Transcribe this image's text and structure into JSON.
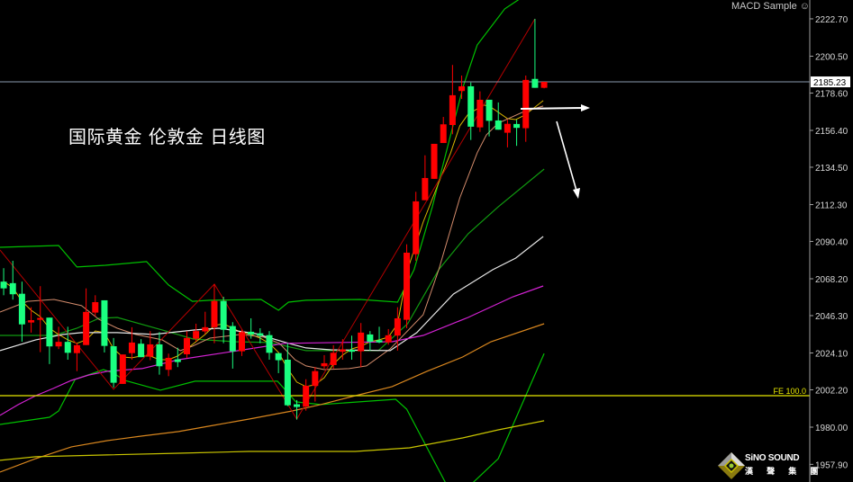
{
  "header": {
    "title": "国际黄金 伦敦金 日线图",
    "indicator_name": "MACD Sample ☺"
  },
  "logo": {
    "text": "SiNO SOUND",
    "text_cn": "漢 聲 集 團"
  },
  "colors": {
    "background": "#000000",
    "up_candle": "#ff0000",
    "down_candle": "#1aff80",
    "axis": "#a0a0a0",
    "current_price_line": "#8a9aae",
    "fe_line": "#e8e800",
    "annotation_arrow": "#ffffff"
  },
  "chart_data": {
    "type": "candlestick",
    "title": "国际黄金 伦敦金 日线图",
    "x_range": [
      -0.4,
      88
    ],
    "ylim": [
      1947.4,
      2233.9
    ],
    "grid": false,
    "y_axis_position": "right",
    "y_ticks": [
      "2222.70",
      "2200.50",
      "2178.60",
      "2156.40",
      "2134.50",
      "2112.30",
      "2090.40",
      "2068.20",
      "2046.30",
      "2024.10",
      "2002.20",
      "1980.00",
      "1957.90"
    ],
    "current_price": {
      "value": 2185.23,
      "label": "2185.23"
    },
    "fe_level": {
      "value": 1998.7,
      "label": "FE 100.0"
    },
    "ohlc_fields": [
      "open",
      "high",
      "low",
      "close"
    ],
    "candles": [
      [
        2066.5,
        2074.5,
        2058.4,
        2062.5
      ],
      [
        2065.6,
        2078.9,
        2055.8,
        2059.0
      ],
      [
        2059.3,
        2066.5,
        2030.8,
        2041.1
      ],
      [
        2042.2,
        2051.3,
        2036.2,
        2043.6
      ],
      [
        2043.8,
        2063.8,
        2024.6,
        2044.9
      ],
      [
        2045.1,
        2045.1,
        2017.5,
        2028.0
      ],
      [
        2028.0,
        2039.7,
        2026.4,
        2030.7
      ],
      [
        2030.7,
        2039.7,
        2020.1,
        2024.2
      ],
      [
        2024.0,
        2029.9,
        2013.3,
        2028.7
      ],
      [
        2028.8,
        2062.5,
        2028.8,
        2048.5
      ],
      [
        2048.1,
        2058.4,
        2045.9,
        2054.3
      ],
      [
        2055.4,
        2055.4,
        2024.4,
        2028.3
      ],
      [
        2028.1,
        2033.0,
        2003.5,
        2006.4
      ],
      [
        2005.7,
        2023.2,
        2005.7,
        2023.2
      ],
      [
        2024.0,
        2039.4,
        2020.1,
        2030.3
      ],
      [
        2029.6,
        2032.3,
        2021.6,
        2021.6
      ],
      [
        2021.9,
        2037.1,
        2019.8,
        2029.2
      ],
      [
        2029.2,
        2036.5,
        2011.2,
        2016.2
      ],
      [
        2014.1,
        2023.7,
        2010.3,
        2021.2
      ],
      [
        2020.3,
        2027.2,
        2015.7,
        2018.7
      ],
      [
        2023.3,
        2037.1,
        2021.0,
        2033.0
      ],
      [
        2032.6,
        2041.5,
        2030.8,
        2037.1
      ],
      [
        2036.9,
        2048.6,
        2035.3,
        2039.4
      ],
      [
        2039.4,
        2065.0,
        2029.9,
        2055.0
      ],
      [
        2055.0,
        2057.5,
        2029.9,
        2037.9
      ],
      [
        2040.1,
        2042.4,
        2014.8,
        2025.1
      ],
      [
        2025.1,
        2037.9,
        2022.3,
        2036.5
      ],
      [
        2036.7,
        2044.7,
        2032.6,
        2035.1
      ],
      [
        2035.8,
        2038.8,
        2029.9,
        2034.4
      ],
      [
        2034.7,
        2037.1,
        2020.1,
        2024.2
      ],
      [
        2024.0,
        2024.0,
        2012.1,
        2019.8
      ],
      [
        2020.1,
        2029.9,
        1992.5,
        1993.0
      ],
      [
        1993.6,
        1996.1,
        1984.5,
        1992.0
      ],
      [
        1992.3,
        2008.5,
        1989.8,
        2004.6
      ],
      [
        2004.5,
        2015.7,
        1995.2,
        2013.3
      ],
      [
        2016.2,
        2022.8,
        2014.8,
        2018.0
      ],
      [
        2016.9,
        2028.7,
        2014.8,
        2024.2
      ],
      [
        2024.8,
        2032.3,
        2020.1,
        2026.2
      ],
      [
        2026.0,
        2034.4,
        2020.1,
        2024.8
      ],
      [
        2025.1,
        2041.9,
        2015.7,
        2036.2
      ],
      [
        2035.1,
        2037.1,
        2025.5,
        2030.8
      ],
      [
        2031.7,
        2039.7,
        2029.9,
        2030.4
      ],
      [
        2030.4,
        2038.3,
        2029.0,
        2034.6
      ],
      [
        2034.4,
        2051.3,
        2025.5,
        2044.7
      ],
      [
        2043.8,
        2088.7,
        2038.8,
        2083.7
      ],
      [
        2082.8,
        2119.9,
        2078.9,
        2114.2
      ],
      [
        2114.9,
        2141.6,
        2114.9,
        2128.1
      ],
      [
        2127.6,
        2148.4,
        2127.6,
        2148.4
      ],
      [
        2148.9,
        2164.4,
        2148.9,
        2160.0
      ],
      [
        2159.6,
        2195.3,
        2154.1,
        2177.3
      ],
      [
        2179.8,
        2189.0,
        2175.1,
        2182.6
      ],
      [
        2182.6,
        2184.9,
        2150.7,
        2158.6
      ],
      [
        2158.2,
        2179.6,
        2155.5,
        2174.6
      ],
      [
        2174.6,
        2174.6,
        2152.8,
        2162.1
      ],
      [
        2162.3,
        2173.0,
        2156.8,
        2156.8
      ],
      [
        2155.0,
        2162.7,
        2146.3,
        2160.3
      ],
      [
        2160.2,
        2162.7,
        2147.2,
        2157.9
      ],
      [
        2157.7,
        2189.0,
        2149.6,
        2186.4
      ],
      [
        2187.0,
        2222.7,
        2181.7,
        2181.7
      ],
      [
        2181.7,
        2185.2,
        2181.4,
        2185.23
      ]
    ],
    "lines": [
      {
        "id": "bollinger-upper",
        "color": "#00c000",
        "width": 1.2,
        "points": [
          [
            -0.4,
            2086.9
          ],
          [
            6,
            2088.0
          ],
          [
            8,
            2075.2
          ],
          [
            11.1,
            2076.2
          ],
          [
            15.6,
            2078.4
          ],
          [
            18,
            2064.5
          ],
          [
            20.6,
            2054.8
          ],
          [
            22.5,
            2055.4
          ],
          [
            28.1,
            2055.9
          ],
          [
            30,
            2049.5
          ],
          [
            31.1,
            2054.3
          ],
          [
            33,
            2055.4
          ],
          [
            38.9,
            2055.9
          ],
          [
            43,
            2054.3
          ],
          [
            44.8,
            2073.6
          ],
          [
            46.8,
            2111.0
          ],
          [
            48.8,
            2153.7
          ],
          [
            50.2,
            2183.1
          ],
          [
            51.7,
            2207.2
          ],
          [
            54.7,
            2228.6
          ],
          [
            56.6,
            2235.5
          ]
        ]
      },
      {
        "id": "bollinger-middle",
        "color": "#109a10",
        "width": 1.2,
        "points": [
          [
            -0.4,
            2034.5
          ],
          [
            5.5,
            2034.5
          ],
          [
            8,
            2038.8
          ],
          [
            10.4,
            2044.7
          ],
          [
            12.4,
            2045.2
          ],
          [
            17.3,
            2037.8
          ],
          [
            20.7,
            2032.4
          ],
          [
            25.2,
            2030.8
          ],
          [
            29.1,
            2030.3
          ],
          [
            33,
            2025.5
          ],
          [
            40.9,
            2025.5
          ],
          [
            44.1,
            2041.5
          ],
          [
            47.5,
            2073.6
          ],
          [
            50.7,
            2094.9
          ],
          [
            54,
            2111.0
          ],
          [
            59,
            2133.4
          ]
        ]
      },
      {
        "id": "bollinger-lower",
        "color": "#00c000",
        "width": 1.2,
        "points": [
          [
            -0.4,
            1981.6
          ],
          [
            5,
            1985.9
          ],
          [
            6,
            1989.6
          ],
          [
            7.8,
            2008.4
          ],
          [
            10.9,
            2014.2
          ],
          [
            12,
            2012.1
          ],
          [
            13.2,
            2007.8
          ],
          [
            17.1,
            2002.0
          ],
          [
            20.9,
            2007.3
          ],
          [
            29.9,
            2007.3
          ],
          [
            31.9,
            1995.0
          ],
          [
            34.6,
            1993.4
          ],
          [
            42.8,
            1996.6
          ],
          [
            44,
            1990.7
          ],
          [
            48.2,
            1947.4
          ],
          [
            49.6,
            1935.0
          ],
          [
            51.3,
            1947.4
          ],
          [
            54,
            1961.3
          ],
          [
            59,
            2023.8
          ]
        ]
      },
      {
        "id": "ma-fast-yellow",
        "color": "#d8b400",
        "width": 1,
        "points": [
          [
            0,
            2066.6
          ],
          [
            1,
            2062.9
          ],
          [
            2,
            2054.8
          ],
          [
            3,
            2049.5
          ],
          [
            4,
            2045.7
          ],
          [
            5,
            2038.8
          ],
          [
            6,
            2035.1
          ],
          [
            7,
            2031.9
          ],
          [
            8,
            2029.8
          ],
          [
            9,
            2031.9
          ],
          [
            10,
            2037.2
          ],
          [
            11,
            2036.2
          ],
          [
            12,
            2026.5
          ],
          [
            13,
            2021.7
          ],
          [
            14,
            2021.2
          ],
          [
            15,
            2022.3
          ],
          [
            16,
            2022.3
          ],
          [
            17,
            2020.1
          ],
          [
            18,
            2020.1
          ],
          [
            19,
            2022.3
          ],
          [
            20,
            2026.5
          ],
          [
            21,
            2030.8
          ],
          [
            22,
            2035.1
          ],
          [
            23,
            2040.4
          ],
          [
            24,
            2041.5
          ],
          [
            25,
            2038.8
          ],
          [
            26,
            2036.2
          ],
          [
            27,
            2035.1
          ],
          [
            28,
            2032.9
          ],
          [
            29,
            2029.8
          ],
          [
            30,
            2024.4
          ],
          [
            31,
            2014.8
          ],
          [
            32,
            2006.8
          ],
          [
            33,
            2004.1
          ],
          [
            34,
            2005.2
          ],
          [
            35,
            2009.4
          ],
          [
            36,
            2017.4
          ],
          [
            37,
            2022.8
          ],
          [
            38,
            2026.5
          ],
          [
            39,
            2028.1
          ],
          [
            40,
            2030.8
          ],
          [
            41,
            2031.9
          ],
          [
            42,
            2033.5
          ],
          [
            43,
            2041.5
          ],
          [
            44.1,
            2073.6
          ],
          [
            45.8,
            2101.9
          ],
          [
            47.5,
            2125.4
          ],
          [
            48.8,
            2143.1
          ],
          [
            49.8,
            2159.1
          ],
          [
            50.7,
            2166.0
          ],
          [
            52.4,
            2171.4
          ],
          [
            53,
            2170.9
          ],
          [
            55,
            2163.4
          ],
          [
            55.9,
            2162.8
          ],
          [
            56.9,
            2165.5
          ],
          [
            58.9,
            2174.1
          ]
        ]
      },
      {
        "id": "ma-tan",
        "color": "#d48c6c",
        "width": 1,
        "points": [
          [
            -0.4,
            2048.4
          ],
          [
            2.6,
            2054.8
          ],
          [
            5.5,
            2055.9
          ],
          [
            8.5,
            2052.2
          ],
          [
            10.4,
            2044.1
          ],
          [
            12.4,
            2038.8
          ],
          [
            14.4,
            2035.1
          ],
          [
            17.3,
            2031.9
          ],
          [
            19.3,
            2025.5
          ],
          [
            20.6,
            2028.1
          ],
          [
            22.5,
            2032.9
          ],
          [
            25.9,
            2035.1
          ],
          [
            28.4,
            2033.5
          ],
          [
            30.1,
            2029.8
          ],
          [
            31.8,
            2020.1
          ],
          [
            33,
            2016.4
          ],
          [
            35,
            2014.2
          ],
          [
            37.7,
            2014.8
          ],
          [
            39.6,
            2016.4
          ],
          [
            42.2,
            2026.5
          ],
          [
            45.8,
            2046.8
          ],
          [
            47.5,
            2073.6
          ],
          [
            49.8,
            2116.3
          ],
          [
            51.7,
            2143.1
          ],
          [
            52.7,
            2153.7
          ],
          [
            54,
            2160.7
          ],
          [
            56.6,
            2167.1
          ],
          [
            58.9,
            2170.9
          ]
        ]
      },
      {
        "id": "ma-white",
        "color": "#e6e6e6",
        "width": 1.2,
        "points": [
          [
            -0.4,
            2025.5
          ],
          [
            3.5,
            2031.9
          ],
          [
            6.5,
            2035.1
          ],
          [
            8.5,
            2036.2
          ],
          [
            12.4,
            2036.2
          ],
          [
            16.3,
            2035.1
          ],
          [
            20.9,
            2037.8
          ],
          [
            23.5,
            2038.8
          ],
          [
            27.5,
            2035.6
          ],
          [
            31.1,
            2029.8
          ],
          [
            33,
            2027.1
          ],
          [
            35.7,
            2026.0
          ],
          [
            42.2,
            2025.5
          ],
          [
            45.1,
            2036.2
          ],
          [
            49.1,
            2059.1
          ],
          [
            53.4,
            2073.6
          ],
          [
            55.9,
            2080.5
          ],
          [
            58.9,
            2093.3
          ]
        ]
      },
      {
        "id": "ma-magenta",
        "color": "#d422d4",
        "width": 1.2,
        "points": [
          [
            -0.4,
            1987.0
          ],
          [
            1.6,
            1993.4
          ],
          [
            3.5,
            1998.7
          ],
          [
            5.4,
            2003.0
          ],
          [
            7.4,
            2007.8
          ],
          [
            9.3,
            2011.0
          ],
          [
            11.3,
            2013.2
          ],
          [
            15.1,
            2014.8
          ],
          [
            19.1,
            2020.1
          ],
          [
            26.8,
            2026.5
          ],
          [
            30.7,
            2029.8
          ],
          [
            42.4,
            2030.8
          ],
          [
            45.8,
            2034.5
          ],
          [
            50.7,
            2045.2
          ],
          [
            55.6,
            2057.5
          ],
          [
            58.9,
            2063.9
          ]
        ]
      },
      {
        "id": "ma-orange",
        "color": "#d8861e",
        "width": 1.2,
        "points": [
          [
            -0.4,
            1953.3
          ],
          [
            3.5,
            1961.3
          ],
          [
            7.4,
            1968.3
          ],
          [
            11.3,
            1972.0
          ],
          [
            15.1,
            1974.7
          ],
          [
            19.1,
            1977.4
          ],
          [
            22.9,
            1981.1
          ],
          [
            26.8,
            1984.8
          ],
          [
            31.5,
            1989.6
          ],
          [
            34.6,
            1993.4
          ],
          [
            38.4,
            1998.7
          ],
          [
            42.4,
            2004.1
          ],
          [
            46.2,
            2013.2
          ],
          [
            50.1,
            2021.7
          ],
          [
            53.2,
            2030.8
          ],
          [
            59,
            2041.5
          ]
        ]
      },
      {
        "id": "ma-yellow-long",
        "color": "#c8c400",
        "width": 1.2,
        "points": [
          [
            -0.4,
            1960.3
          ],
          [
            3.5,
            1962.4
          ],
          [
            11.3,
            1963.5
          ],
          [
            19.1,
            1964.5
          ],
          [
            26.8,
            1965.6
          ],
          [
            38.4,
            1965.6
          ],
          [
            44.3,
            1967.7
          ],
          [
            50.1,
            1973.6
          ],
          [
            54,
            1978.4
          ],
          [
            59,
            1983.8
          ]
        ]
      },
      {
        "id": "zigzag",
        "color": "#b40000",
        "width": 1,
        "points": [
          [
            -0.4,
            2085.3
          ],
          [
            12,
            2002.5
          ],
          [
            23,
            2065.0
          ],
          [
            32,
            1984.8
          ],
          [
            58,
            2222.7
          ]
        ]
      }
    ]
  }
}
